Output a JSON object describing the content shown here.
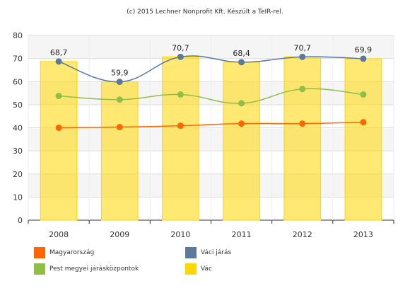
{
  "credit": "(c) 2015 Lechner Nonprofit Kft. Készült a TeIR-rel.",
  "chart_data": {
    "type": "bar",
    "categories": [
      "2008",
      "2009",
      "2010",
      "2011",
      "2012",
      "2013"
    ],
    "ylim": [
      0,
      80
    ],
    "yticks": [
      0,
      10,
      20,
      30,
      40,
      50,
      60,
      70,
      80
    ],
    "grid": true,
    "legend_position": "bottom",
    "series": [
      {
        "name": "Vác",
        "type": "bar",
        "color": "#FFD700",
        "values": [
          68.7,
          59.9,
          70.7,
          68.4,
          70.7,
          69.9
        ]
      },
      {
        "name": "Váci járás",
        "type": "line",
        "color": "#5B7A9B",
        "values": [
          68.7,
          59.9,
          70.7,
          68.4,
          70.7,
          69.9
        ],
        "data_labels": [
          "68,7",
          "59,9",
          "70,7",
          "68,4",
          "70,7",
          "69,9"
        ]
      },
      {
        "name": "Pest megyei járásközpontok",
        "type": "line",
        "color": "#8FBF47",
        "values": [
          53.8,
          52.2,
          54.4,
          50.6,
          56.8,
          54.4
        ]
      },
      {
        "name": "Magyarország",
        "type": "line",
        "color": "#FF6600",
        "values": [
          40.0,
          40.3,
          40.9,
          41.8,
          41.8,
          42.4
        ]
      }
    ],
    "legend": [
      {
        "name": "Magyarország",
        "color": "#FF6600"
      },
      {
        "name": "Váci járás",
        "color": "#5B7A9B"
      },
      {
        "name": "Pest megyei járásközpontok",
        "color": "#8FBF47"
      },
      {
        "name": "Vác",
        "color": "#FFD700"
      }
    ]
  }
}
